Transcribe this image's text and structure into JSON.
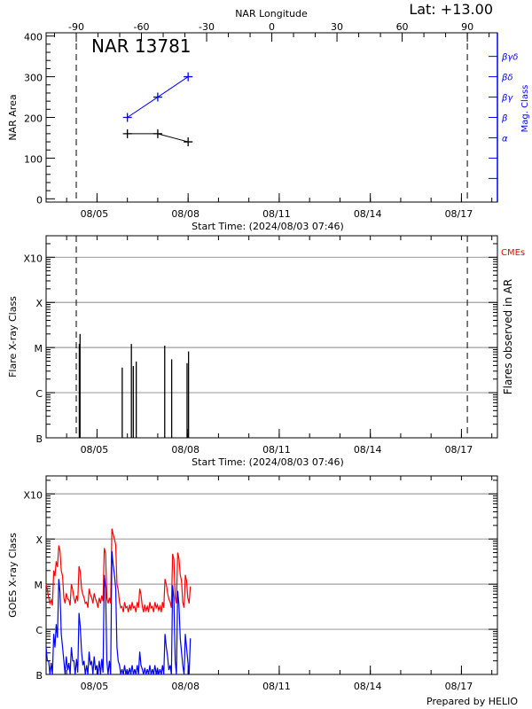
{
  "header": {
    "lat_label": "Lat: +13.00",
    "prepared_by": "Prepared by HELIO"
  },
  "colors": {
    "axis": "#000000",
    "grid": "#a0a0a0",
    "mag_class": "#0000ff",
    "cme": "#ff0000",
    "goes_long": "#ff0000",
    "goes_short": "#0000ff"
  },
  "chart_data": [
    {
      "type": "line",
      "title": "NAR 13781",
      "xlabel": "Start Time: (2024/08/03 07:46)",
      "xlim": [
        "2024-08-03 07:46",
        "2024-08-18 04:26"
      ],
      "xticks": [
        {
          "date": "2024-08-05 00:00",
          "label": "08/05"
        },
        {
          "date": "2024-08-08 00:00",
          "label": "08/08"
        },
        {
          "date": "2024-08-11 00:00",
          "label": "08/11"
        },
        {
          "date": "2024-08-14 00:00",
          "label": "08/14"
        },
        {
          "date": "2024-08-17 00:00",
          "label": "08/17"
        }
      ],
      "top_axis": {
        "label": "NAR Longitude",
        "ticks": [
          "-90",
          "-60",
          "-30",
          "0",
          "30",
          "60",
          "90"
        ],
        "limb_dates": [
          "2024-08-04 07:36",
          "2024-08-17 04:40"
        ]
      },
      "ylabel": "NAR Area",
      "ylim": [
        -8,
        408
      ],
      "yticks": [
        "0",
        "100",
        "200",
        "300",
        "400"
      ],
      "right_axis": {
        "label": "Mag. Class",
        "ticks": [
          {
            "value": 50,
            "label": ""
          },
          {
            "value": 100,
            "label": ""
          },
          {
            "value": 150,
            "label": "α"
          },
          {
            "value": 200,
            "label": "β"
          },
          {
            "value": 250,
            "label": "βγ"
          },
          {
            "value": 300,
            "label": "βδ"
          },
          {
            "value": 350,
            "label": "βγδ"
          }
        ]
      },
      "limb_lines": [
        "2024-08-04 07:36",
        "2024-08-17 04:40"
      ],
      "series": [
        {
          "key": "area",
          "color": "#000000",
          "x": [
            "2024-08-06 00:00",
            "2024-08-07 00:00",
            "2024-08-08 00:00"
          ],
          "y": [
            160,
            160,
            140
          ]
        },
        {
          "key": "mag_class",
          "color": "#0000ff",
          "x": [
            "2024-08-06 00:00",
            "2024-08-07 00:00",
            "2024-08-08 00:00"
          ],
          "y": [
            "β",
            "βγ",
            "βδ"
          ]
        }
      ]
    },
    {
      "type": "bar",
      "xlabel": "Start Time: (2024/08/03 07:46)",
      "xlim": [
        "2024-08-03 07:46",
        "2024-08-18 04:26"
      ],
      "xticks": [
        {
          "date": "2024-08-05 00:00",
          "label": "08/05"
        },
        {
          "date": "2024-08-08 00:00",
          "label": "08/08"
        },
        {
          "date": "2024-08-11 00:00",
          "label": "08/11"
        },
        {
          "date": "2024-08-14 00:00",
          "label": "08/14"
        },
        {
          "date": "2024-08-17 00:00",
          "label": "08/17"
        }
      ],
      "ylabel": "Flare X-ray Class",
      "right_label": "Flares observed in AR",
      "cme_label": "CMEs",
      "yscale": "log",
      "ylim": [
        1e-07,
        0.003
      ],
      "yticks": [
        {
          "value": 1e-07,
          "label": "B"
        },
        {
          "value": 1e-06,
          "label": "C"
        },
        {
          "value": 1e-05,
          "label": "M"
        },
        {
          "value": 0.0001,
          "label": "X"
        },
        {
          "value": 0.001,
          "label": "X10"
        }
      ],
      "grid": true,
      "limb_lines": [
        "2024-08-04 07:36",
        "2024-08-17 04:40"
      ],
      "flares": [
        {
          "time": "2024-08-04 10:00",
          "class": "M1.2"
        },
        {
          "time": "2024-08-04 10:35",
          "class": "M2.0"
        },
        {
          "time": "2024-08-05 19:55",
          "class": "C3.6"
        },
        {
          "time": "2024-08-06 03:10",
          "class": "M1.2"
        },
        {
          "time": "2024-08-06 04:40",
          "class": "C3.9"
        },
        {
          "time": "2024-08-06 07:00",
          "class": "C4.9"
        },
        {
          "time": "2024-08-07 05:30",
          "class": "M1.1"
        },
        {
          "time": "2024-08-07 11:00",
          "class": "C5.5"
        },
        {
          "time": "2024-08-07 23:10",
          "class": "C4.5"
        },
        {
          "time": "2024-08-08 00:20",
          "class": "C8.2"
        }
      ]
    },
    {
      "type": "line",
      "xlim": [
        "2024-08-03 07:46",
        "2024-08-18 04:26"
      ],
      "xticks": [
        {
          "date": "2024-08-05 00:00",
          "label": "08/05"
        },
        {
          "date": "2024-08-08 00:00",
          "label": "08/08"
        },
        {
          "date": "2024-08-11 00:00",
          "label": "08/11"
        },
        {
          "date": "2024-08-14 00:00",
          "label": "08/14"
        },
        {
          "date": "2024-08-17 00:00",
          "label": "08/17"
        }
      ],
      "ylabel": "GOES X-ray Class",
      "yscale": "log",
      "ylim": [
        1e-07,
        0.0025
      ],
      "yticks": [
        {
          "value": 1e-07,
          "label": "B"
        },
        {
          "value": 1e-06,
          "label": "C"
        },
        {
          "value": 1e-05,
          "label": "M"
        },
        {
          "value": 0.0001,
          "label": "X"
        },
        {
          "value": 0.001,
          "label": "X10"
        }
      ],
      "grid": true,
      "x_start": "2024-08-03 07:46",
      "x_step_hours": 2,
      "series": [
        {
          "key": "long",
          "color": "#ff0000",
          "y": [
            1e-05,
            5e-06,
            4.5e-06,
            2e-05,
            3.2e-05,
            7.2e-05,
            2e-05,
            5e-06,
            6.3e-06,
            4.5e-06,
            1e-05,
            5e-06,
            5.6e-06,
            2.5e-05,
            7.9e-06,
            5e-06,
            4e-06,
            7.9e-06,
            5e-06,
            6.3e-06,
            4e-06,
            5e-06,
            5.6e-06,
            6.3e-05,
            5e-06,
            5e-06,
            0.00017,
            0.0001,
            1e-05,
            4e-06,
            3.2e-06,
            4e-06,
            3.2e-06,
            3.5e-06,
            4e-06,
            3.2e-06,
            4e-06,
            7.9e-06,
            3.2e-06,
            3.5e-06,
            3.2e-06,
            4e-06,
            3.2e-06,
            4e-06,
            3.5e-06,
            3.2e-06,
            4e-06,
            1.3e-05,
            6.3e-06,
            4e-06,
            4.7e-05,
            5e-06,
            5e-05,
            1.6e-05,
            4e-06,
            1.6e-05,
            5e-06,
            8.9e-06
          ]
        },
        {
          "key": "short",
          "color": "#0000ff",
          "y": [
            4e-07,
            2e-07,
            1.8e-07,
            7.9e-07,
            1.3e-06,
            1.3e-05,
            7.9e-07,
            2e-07,
            2.5e-07,
            1.8e-07,
            4e-07,
            2e-07,
            2.2e-07,
            2.3e-06,
            3.2e-07,
            2e-07,
            1.6e-07,
            3.2e-07,
            2e-07,
            2.5e-07,
            1.6e-07,
            2e-07,
            2.2e-07,
            1.6e-05,
            2e-07,
            2e-07,
            5.4e-05,
            1.6e-05,
            4e-07,
            1.6e-07,
            1.3e-07,
            1.6e-07,
            1.3e-07,
            1.4e-07,
            1.6e-07,
            1.3e-07,
            1.6e-07,
            3.2e-07,
            1.3e-07,
            1.4e-07,
            1.3e-07,
            1.6e-07,
            1.3e-07,
            1.6e-07,
            1.4e-07,
            1.3e-07,
            1.6e-07,
            7.9e-07,
            2.5e-07,
            1.6e-07,
            9.5e-06,
            2e-07,
            7.1e-06,
            6.3e-07,
            1.6e-07,
            7.9e-07,
            2e-07,
            6.3e-07
          ]
        }
      ]
    }
  ]
}
